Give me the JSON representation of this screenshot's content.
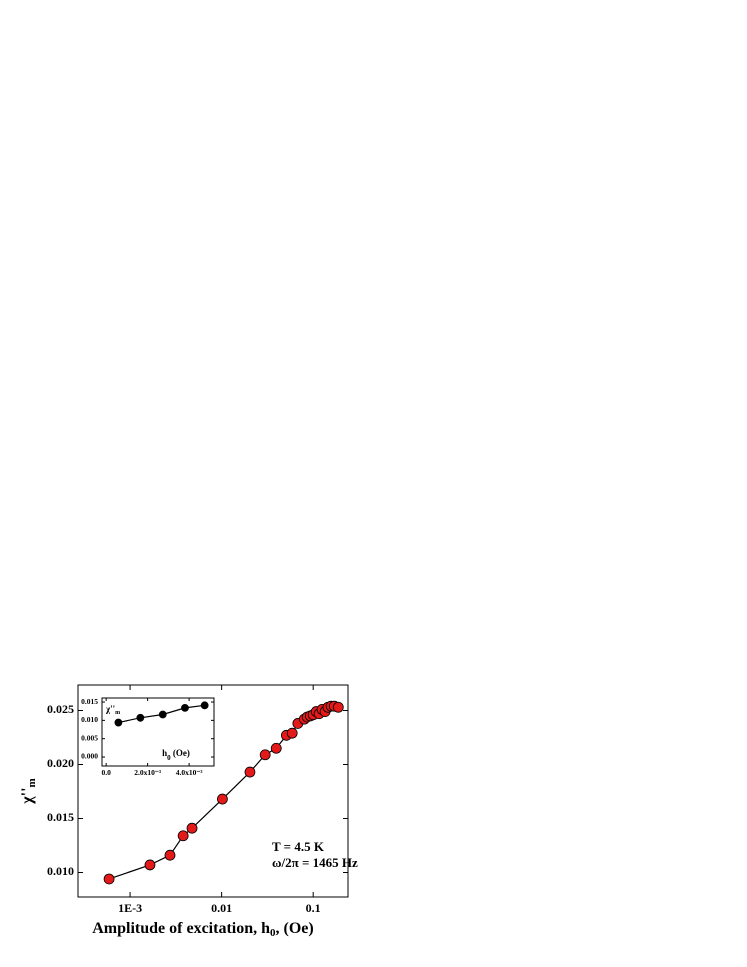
{
  "chart_data": [
    {
      "type": "line",
      "xscale": "log",
      "xlabel": "Amplitude of excitation, h",
      "xlabel_sub": "0",
      "xlabel_tail": ", (Oe)",
      "ylabel": "χ''",
      "ylabel_sub": "m",
      "annotations": [
        "T = 4.5 K",
        "ω/2π = 1465 Hz"
      ],
      "x": [
        0.00059,
        0.00165,
        0.00273,
        0.0038,
        0.00475,
        0.0102,
        0.0204,
        0.0299,
        0.0395,
        0.051,
        0.059,
        0.068,
        0.08,
        0.086,
        0.093,
        0.1,
        0.108,
        0.116,
        0.125,
        0.135,
        0.145,
        0.157,
        0.17,
        0.188
      ],
      "series": [
        {
          "color": "#e41a1a",
          "values": [
            0.0094,
            0.0107,
            0.0116,
            0.0134,
            0.0141,
            0.0168,
            0.0193,
            0.0209,
            0.0215,
            0.0227,
            0.0229,
            0.0238,
            0.0242,
            0.0244,
            0.0245,
            0.0246,
            0.0249,
            0.0247,
            0.0251,
            0.0249,
            0.0253,
            0.0254,
            0.0254,
            0.0253
          ]
        }
      ],
      "xlim": [
        0.00027,
        0.24
      ],
      "xticks": [
        {
          "value": 0.001,
          "label": "1E-3"
        },
        0.01,
        0.1
      ],
      "ylim": [
        0.00773,
        0.02736
      ],
      "yticks": [
        {
          "value": 0.01,
          "label": "0.010"
        },
        0.015,
        {
          "value": 0.02,
          "label": "0.020"
        },
        0.025
      ]
    },
    {
      "type": "line",
      "xlabel": "h",
      "xlabel_sub": "0",
      "xlabel_tail": " (Oe)",
      "ylabel": "χ''",
      "ylabel_sub": "m",
      "x": [
        0.00059,
        0.00165,
        0.00273,
        0.0038,
        0.00475
      ],
      "series": [
        {
          "color": "#000000",
          "values": [
            0.0094,
            0.0107,
            0.0116,
            0.0134,
            0.0141
          ]
        }
      ],
      "xlim": [
        -0.0002,
        0.0052
      ],
      "xticks": [
        {
          "value": 0,
          "label": "0.0"
        },
        {
          "value": 0.002,
          "label": "2.0x10⁻³"
        },
        {
          "value": 0.004,
          "label": "4.0x10⁻³"
        }
      ],
      "ylim": [
        -0.00245,
        0.0161
      ],
      "yticks": [
        {
          "value": 0,
          "label": "0.000"
        },
        {
          "value": 0.005,
          "label": "0.005"
        },
        {
          "value": 0.01,
          "label": "0.010"
        },
        {
          "value": 0.015,
          "label": "0.015"
        }
      ]
    }
  ]
}
